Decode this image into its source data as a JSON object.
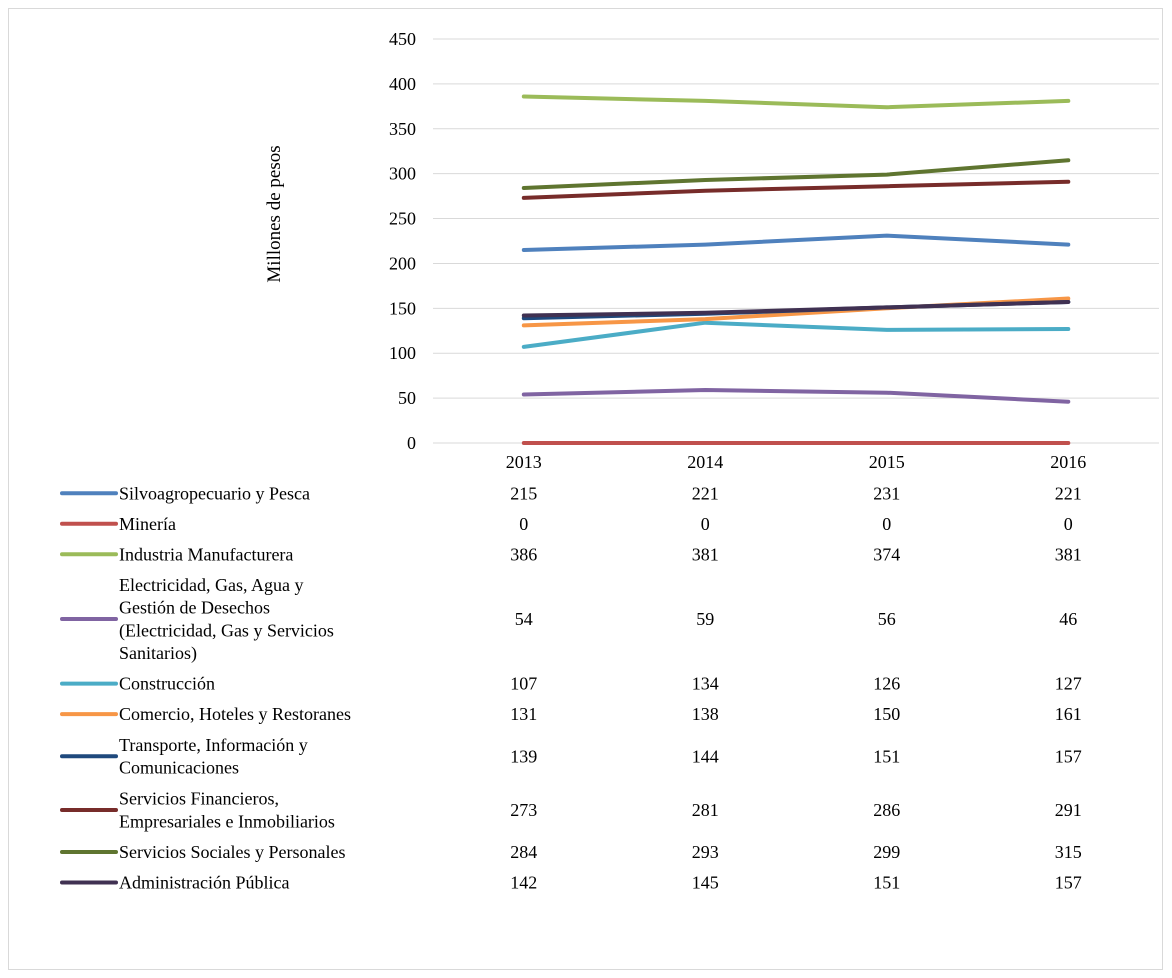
{
  "chart_data": {
    "type": "line",
    "ylabel": "Millones de pesos",
    "ylim": [
      0,
      450
    ],
    "yticks": [
      0,
      50,
      100,
      150,
      200,
      250,
      300,
      350,
      400,
      450
    ],
    "categories": [
      "2013",
      "2014",
      "2015",
      "2016"
    ],
    "legend": "data-table-bottom",
    "grid": true,
    "series": [
      {
        "name": "Silvoagropecuario y Pesca",
        "label_lines": [
          "Silvoagropecuario y Pesca"
        ],
        "color": "#4F81BD",
        "values": [
          215,
          221,
          231,
          221
        ]
      },
      {
        "name": "Minería",
        "label_lines": [
          "Minería"
        ],
        "color": "#C0504D",
        "values": [
          0,
          0,
          0,
          0
        ]
      },
      {
        "name": "Industria Manufacturera",
        "label_lines": [
          "Industria Manufacturera"
        ],
        "color": "#9BBB59",
        "values": [
          386,
          381,
          374,
          381
        ]
      },
      {
        "name": "Electricidad, Gas, Agua y Gestión de Desechos (Electricidad, Gas y Servicios Sanitarios)",
        "label_lines": [
          "Electricidad, Gas, Agua y",
          "Gestión de Desechos",
          "(Electricidad, Gas y Servicios",
          "Sanitarios)"
        ],
        "color": "#8064A2",
        "values": [
          54,
          59,
          56,
          46
        ]
      },
      {
        "name": "Construcción",
        "label_lines": [
          "Construcción"
        ],
        "color": "#4BACC6",
        "values": [
          107,
          134,
          126,
          127
        ]
      },
      {
        "name": "Comercio, Hoteles y Restoranes",
        "label_lines": [
          "Comercio, Hoteles y Restoranes"
        ],
        "color": "#F79646",
        "values": [
          131,
          138,
          150,
          161
        ]
      },
      {
        "name": "Transporte, Información y Comunicaciones",
        "label_lines": [
          "Transporte, Información y",
          "Comunicaciones"
        ],
        "color": "#1F497D",
        "values": [
          139,
          144,
          151,
          157
        ]
      },
      {
        "name": "Servicios Financieros, Empresariales e Inmobiliarios",
        "label_lines": [
          "Servicios Financieros,",
          "Empresariales e Inmobiliarios"
        ],
        "color": "#772C2A",
        "values": [
          273,
          281,
          286,
          291
        ]
      },
      {
        "name": "Servicios Sociales y Personales",
        "label_lines": [
          "Servicios Sociales y Personales"
        ],
        "color": "#5F7530",
        "values": [
          284,
          293,
          299,
          315
        ]
      },
      {
        "name": "Administración Pública",
        "label_lines": [
          "Administración Pública"
        ],
        "color": "#403152",
        "values": [
          142,
          145,
          151,
          157
        ]
      }
    ]
  }
}
